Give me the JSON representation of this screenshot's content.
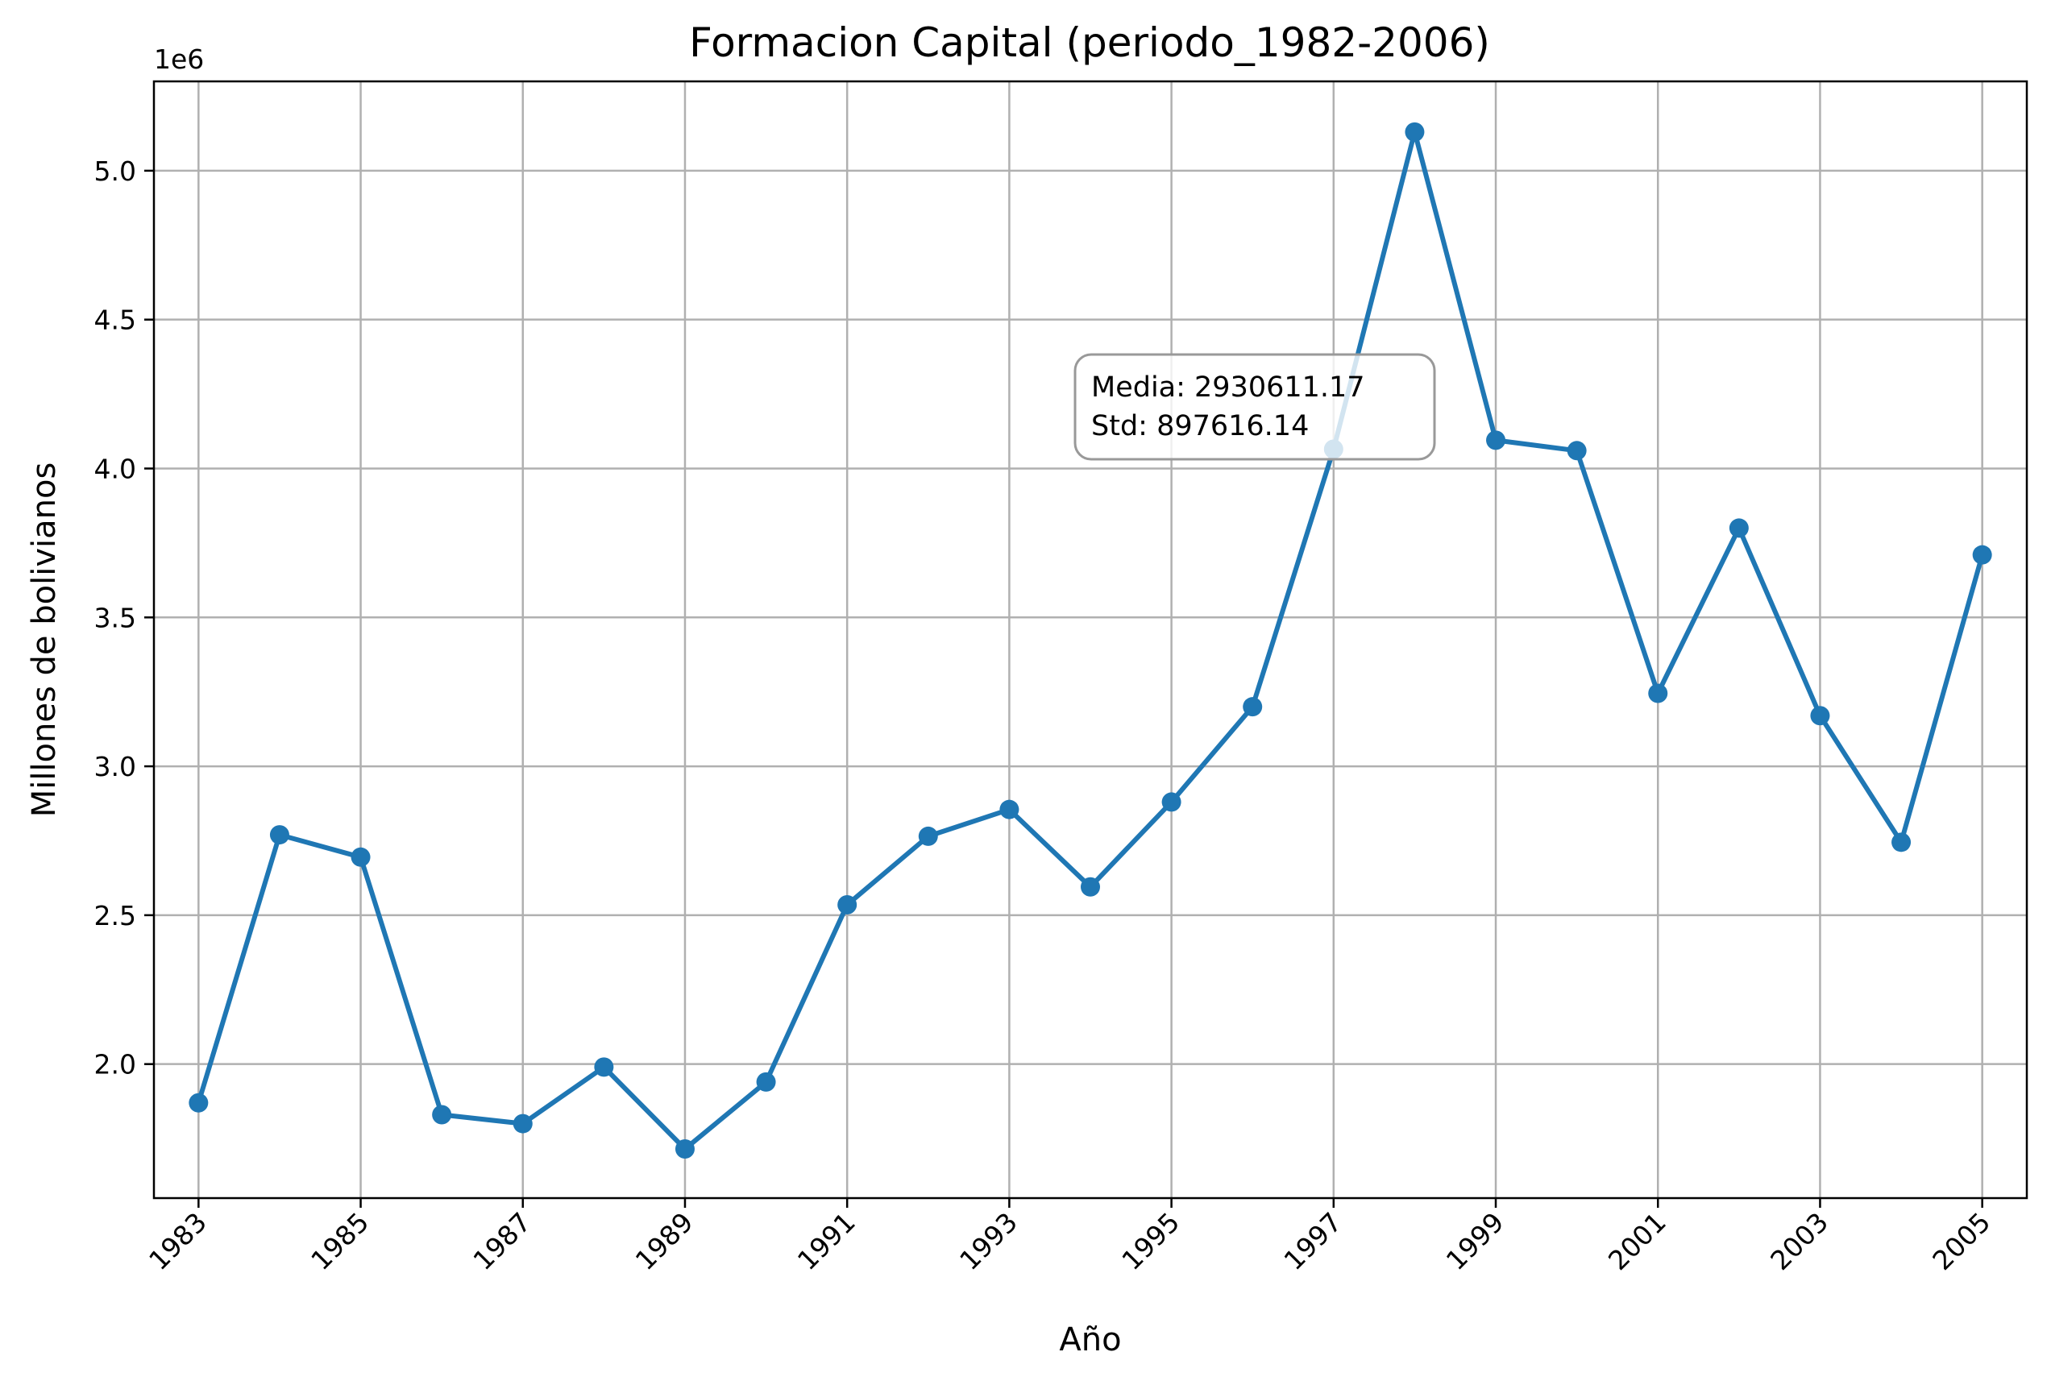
{
  "chart_data": {
    "type": "line",
    "title": "Formacion Capital (periodo_1982-2006)",
    "xlabel": "Año",
    "ylabel": "Millones de bolivianos",
    "y_offset_label": "1e6",
    "xlim": [
      1982.45,
      2005.55
    ],
    "ylim": [
      1.55,
      5.3
    ],
    "x_ticks": [
      1983,
      1985,
      1987,
      1989,
      1991,
      1993,
      1995,
      1997,
      1999,
      2001,
      2003,
      2005
    ],
    "y_ticks": [
      2.0,
      2.5,
      3.0,
      3.5,
      4.0,
      4.5,
      5.0
    ],
    "y_tick_labels": [
      "2.0",
      "2.5",
      "3.0",
      "3.5",
      "4.0",
      "4.5",
      "5.0"
    ],
    "grid": true,
    "line_color": "#1f77b4",
    "x": [
      1983,
      1984,
      1985,
      1986,
      1987,
      1988,
      1989,
      1990,
      1991,
      1992,
      1993,
      1994,
      1995,
      1996,
      1997,
      1998,
      1999,
      2000,
      2001,
      2002,
      2003,
      2004,
      2005
    ],
    "values": [
      1.87,
      2.77,
      2.695,
      1.83,
      1.8,
      1.99,
      1.715,
      1.94,
      2.535,
      2.765,
      2.855,
      2.595,
      2.88,
      3.2,
      4.065,
      5.13,
      4.095,
      4.06,
      3.245,
      3.8,
      3.17,
      2.745,
      3.71
    ],
    "annotation": {
      "lines": [
        "Media: 2930611.17",
        "Std: 897616.14"
      ]
    }
  }
}
